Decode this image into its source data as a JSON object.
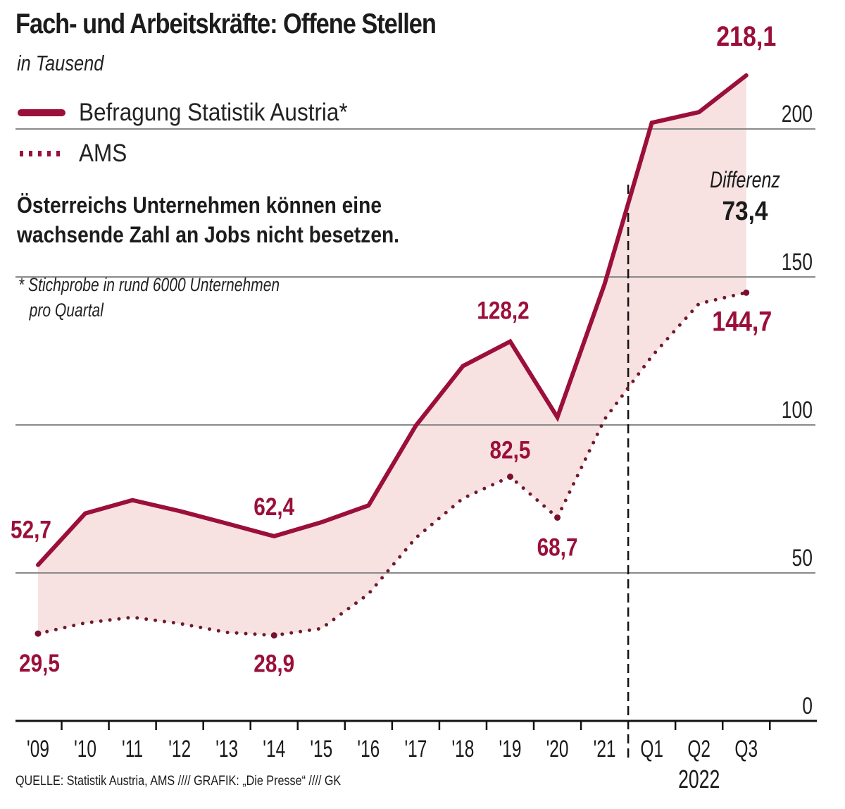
{
  "header": {
    "title": "Fach- und Arbeitskräfte: Offene Stellen",
    "subtitle": "in Tausend"
  },
  "legend": [
    {
      "label": "Befragung Statistik Austria*",
      "style": "solid"
    },
    {
      "label": "AMS",
      "style": "dotted"
    }
  ],
  "note": {
    "line1": "Österreichs Unternehmen können eine",
    "line2": "wachsende Zahl an Jobs nicht besetzen."
  },
  "footnote": {
    "line1": "* Stichprobe in rund 6000 Unternehmen",
    "line2": "pro Quartal"
  },
  "difference": {
    "label": "Differenz",
    "value": "73,4"
  },
  "source": "QUELLE: Statistik Austria, AMS //// GRAFIK: „Die Presse“ //// GK",
  "colors": {
    "primary": "#9b0f3a",
    "fill": "#f7e1e1",
    "grid": "#8a8a8a",
    "axis": "#111111"
  },
  "chart_data": {
    "type": "line",
    "title": "Fach- und Arbeitskräfte: Offene Stellen",
    "subtitle": "in Tausend",
    "xlabel": "",
    "ylabel": "",
    "categories": [
      "'09",
      "'10",
      "'11",
      "'12",
      "'13",
      "'14",
      "'15",
      "'16",
      "'17",
      "'18",
      "'19",
      "'20",
      "'21",
      "Q1",
      "Q2",
      "Q3"
    ],
    "group_label": {
      "text": "2022",
      "categories": [
        "Q1",
        "Q2",
        "Q3"
      ]
    },
    "ylim": [
      0,
      220
    ],
    "yticks": [
      0,
      50,
      100,
      150,
      200
    ],
    "ytick_labels": [
      "0",
      "50",
      "100",
      "150",
      "200"
    ],
    "grid": true,
    "legend_position": "top-left",
    "divider_between": [
      "'21",
      "Q1"
    ],
    "series": [
      {
        "name": "Befragung Statistik Austria*",
        "style": "solid",
        "values": [
          52.7,
          70.1,
          74.6,
          70.9,
          66.7,
          62.4,
          67.1,
          72.8,
          99.7,
          119.9,
          128.2,
          102.6,
          147.6,
          202.1,
          205.7,
          218.1
        ]
      },
      {
        "name": "AMS",
        "style": "dotted",
        "values": [
          29.5,
          33.1,
          35.0,
          32.9,
          29.9,
          28.9,
          31.2,
          42.9,
          61.8,
          75.2,
          82.5,
          68.7,
          101.9,
          123.2,
          141.0,
          144.7
        ]
      }
    ],
    "annotations": [
      {
        "series": 0,
        "index": 0,
        "text": "52,7"
      },
      {
        "series": 0,
        "index": 5,
        "text": "62,4"
      },
      {
        "series": 0,
        "index": 10,
        "text": "128,2"
      },
      {
        "series": 0,
        "index": 15,
        "text": "218,1"
      },
      {
        "series": 1,
        "index": 0,
        "text": "29,5"
      },
      {
        "series": 1,
        "index": 5,
        "text": "28,9"
      },
      {
        "series": 1,
        "index": 10,
        "text": "82,5"
      },
      {
        "series": 1,
        "index": 11,
        "text": "68,7"
      },
      {
        "series": 1,
        "index": 15,
        "text": "144,7"
      }
    ]
  }
}
